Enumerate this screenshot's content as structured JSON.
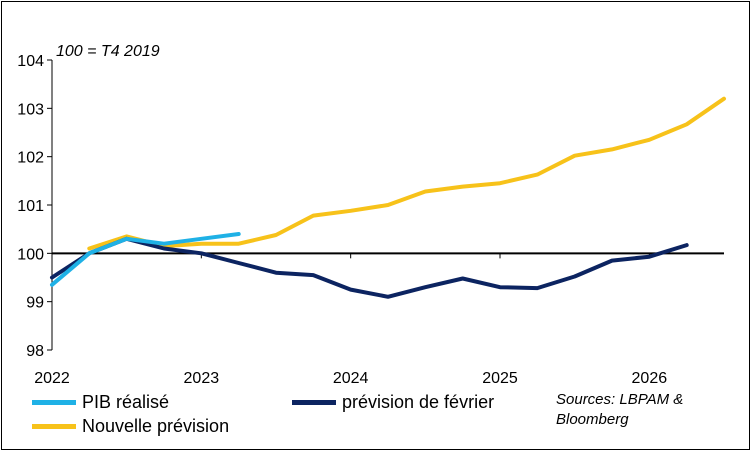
{
  "chart_data": {
    "type": "line",
    "annotation": "100 = T4 2019",
    "ylim": [
      98,
      104
    ],
    "yticks": [
      98,
      99,
      100,
      101,
      102,
      103,
      104
    ],
    "xlim": [
      2022,
      2026.5
    ],
    "xticks": [
      2022,
      2023,
      2024,
      2025,
      2026
    ],
    "baseline": 100,
    "grid": false,
    "legend_position": "bottom",
    "series": [
      {
        "name": "PIB réalisé",
        "color": "#1fb1e6",
        "x": [
          2022.0,
          2022.25,
          2022.5,
          2022.75,
          2023.0,
          2023.25
        ],
        "y": [
          99.35,
          100.0,
          100.3,
          100.2,
          100.3,
          100.4
        ]
      },
      {
        "name": "prévision de février",
        "color": "#0c2461",
        "x": [
          2022.0,
          2022.25,
          2022.5,
          2022.75,
          2023.0,
          2023.25,
          2023.5,
          2023.75,
          2024.0,
          2024.25,
          2024.5,
          2024.75,
          2025.0,
          2025.25,
          2025.5,
          2025.75,
          2026.0,
          2026.25
        ],
        "y": [
          99.5,
          100.0,
          100.3,
          100.1,
          100.0,
          99.8,
          99.6,
          99.55,
          99.25,
          99.1,
          99.3,
          99.48,
          99.3,
          99.28,
          99.52,
          99.85,
          99.93,
          100.17
        ]
      },
      {
        "name": "Nouvelle prévision",
        "color": "#f7c21a",
        "x": [
          2022.25,
          2022.5,
          2022.75,
          2023.0,
          2023.25,
          2023.5,
          2023.75,
          2024.0,
          2024.25,
          2024.5,
          2024.75,
          2025.0,
          2025.25,
          2025.5,
          2025.75,
          2026.0,
          2026.25,
          2026.5
        ],
        "y": [
          100.1,
          100.35,
          100.15,
          100.2,
          100.2,
          100.38,
          100.78,
          100.88,
          101.0,
          101.28,
          101.38,
          101.45,
          101.63,
          102.02,
          102.15,
          102.35,
          102.67,
          103.2
        ]
      }
    ],
    "sources": "Sources: LBPAM & Bloomberg"
  }
}
